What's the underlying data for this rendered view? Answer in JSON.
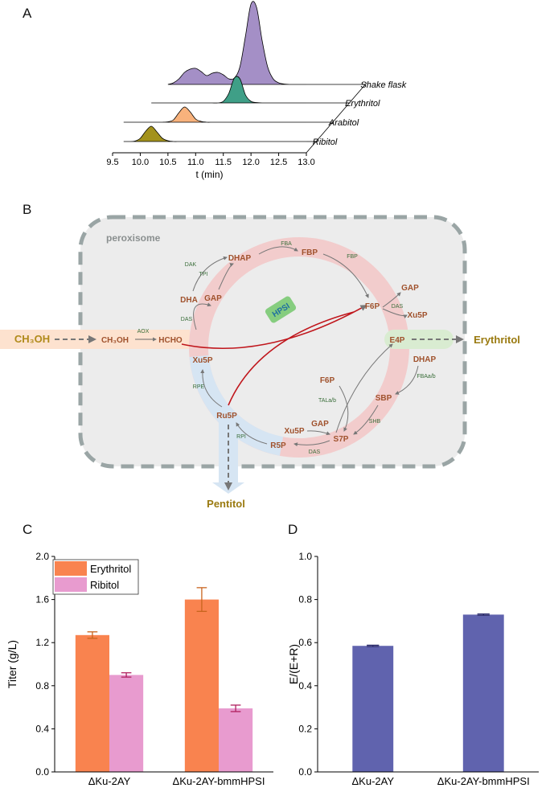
{
  "chart_data": [
    {
      "panel": "A",
      "type": "ridgeline",
      "xlabel": "t (min)",
      "x": [
        9.5,
        9.6,
        9.7,
        9.8,
        9.9,
        10.0,
        10.1,
        10.2,
        10.3,
        10.4,
        10.5,
        10.6,
        10.7,
        10.8,
        10.9,
        11.0,
        11.1,
        11.2,
        11.3,
        11.4,
        11.5,
        11.6,
        11.7,
        11.8,
        11.9,
        12.0,
        12.1,
        12.2,
        12.3,
        12.4,
        12.5,
        12.6,
        12.7,
        12.8,
        12.9,
        13.0
      ],
      "xlim": [
        9.5,
        13.0
      ],
      "xticks": [
        9.5,
        {
          "value": 10,
          "label": "10.0"
        },
        10.5,
        {
          "value": 11,
          "label": "11.0"
        },
        11.5,
        {
          "value": 12,
          "label": "12.0"
        },
        12.5,
        {
          "value": 13,
          "label": "13.0"
        }
      ],
      "series": [
        {
          "name": "Shake flask",
          "color": "#a48fc6",
          "values": [
            null,
            null,
            null,
            null,
            null,
            null,
            null,
            null,
            null,
            null,
            0,
            2,
            7,
            15,
            19,
            20,
            16,
            11,
            14,
            15,
            12,
            7,
            8,
            22,
            60,
            100,
            96,
            55,
            22,
            7,
            2,
            0.5,
            0,
            0,
            0,
            0
          ]
        },
        {
          "name": "Erythritol",
          "color": "#3f9f87",
          "values": [
            null,
            null,
            null,
            null,
            null,
            null,
            null,
            0,
            0,
            0,
            0,
            0,
            0,
            0,
            0,
            0,
            0,
            0,
            0,
            0,
            2,
            12,
            31,
            30,
            10,
            2,
            0.5,
            0,
            0,
            0,
            0,
            0,
            0,
            0,
            0,
            0
          ]
        },
        {
          "name": "Arabitol",
          "color": "#f8b27c",
          "values": [
            null,
            null,
            0,
            0,
            0,
            0,
            0,
            0,
            0,
            0,
            0.5,
            3,
            12,
            19,
            13,
            4,
            1,
            0,
            0,
            0,
            0,
            0,
            0,
            0,
            0,
            0,
            0,
            0,
            0,
            0,
            0,
            0,
            0,
            0,
            0,
            0
          ]
        },
        {
          "name": "Ribitol",
          "color": "#a3921c",
          "values": [
            null,
            null,
            0,
            0,
            0.5,
            4,
            13,
            19,
            12,
            4,
            1,
            0,
            0,
            0,
            0,
            0,
            0,
            0,
            0,
            0,
            0,
            0,
            0,
            0,
            0,
            0,
            0,
            0,
            0,
            0,
            0,
            0,
            0,
            0,
            0,
            0
          ]
        }
      ]
    },
    {
      "panel": "C",
      "type": "bar",
      "ylabel": "Titer (g/L)",
      "legend": "upper left",
      "categories": [
        "ΔKu-2AY",
        "ΔKu-2AY-bmmHPSI"
      ],
      "series": [
        {
          "name": "Erythritol",
          "color": "#f9834f",
          "error_color": "#c8641e",
          "values": [
            1.27,
            1.6
          ],
          "errors": [
            0.03,
            0.11
          ]
        },
        {
          "name": "Ribitol",
          "color": "#e89bcf",
          "error_color": "#b0205f",
          "values": [
            0.9,
            0.59
          ],
          "errors": [
            0.02,
            0.03
          ]
        }
      ],
      "ylim": [
        0,
        2.0
      ],
      "yticks": [
        {
          "value": 0,
          "label": "0.0"
        },
        0.4,
        0.8,
        1.2,
        1.6,
        {
          "value": 2,
          "label": "2.0"
        }
      ]
    },
    {
      "panel": "D",
      "type": "bar",
      "ylabel": "E/(E+R)",
      "categories": [
        "ΔKu-2AY",
        "ΔKu-2AY-bmmHPSI"
      ],
      "color": "#6063ae",
      "error_color": "#2a2a6a",
      "values": [
        0.585,
        0.73
      ],
      "errors": [
        0.003,
        0.003
      ],
      "ylim": [
        0,
        1.0
      ],
      "yticks": [
        {
          "value": 0,
          "label": "0.0"
        },
        0.2,
        0.4,
        0.6,
        0.8,
        {
          "value": 1,
          "label": "1.0"
        }
      ]
    }
  ],
  "diagram": {
    "panel": "B",
    "compartment": "peroxisome",
    "highlight": "HPSI",
    "metabolites": [
      "CH₃OH",
      "CH₃OH",
      "HCHO",
      "DHA",
      "GAP",
      "DHAP",
      "FBP",
      "F6P",
      "GAP",
      "Xu5P",
      "E4P",
      "DHAP",
      "SBP",
      "S7P",
      "GAP",
      "Xu5P",
      "F6P",
      "R5P",
      "Ru5P",
      "Xu5P"
    ],
    "enzymes": [
      "AOX",
      "DAS",
      "DAK",
      "TPI",
      "FBA",
      "FBP",
      "DAS",
      "FBAa/b",
      "SHB",
      "TALa/b",
      "DAS",
      "RPI",
      "RPE"
    ],
    "products": [
      "Erythritol",
      "Pentitol"
    ]
  }
}
